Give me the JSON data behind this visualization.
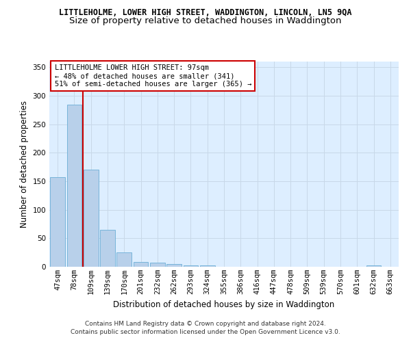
{
  "title": "LITTLEHOLME, LOWER HIGH STREET, WADDINGTON, LINCOLN, LN5 9QA",
  "subtitle": "Size of property relative to detached houses in Waddington",
  "xlabel": "Distribution of detached houses by size in Waddington",
  "ylabel": "Number of detached properties",
  "bar_color": "#b8d0ea",
  "bar_edge_color": "#6aaed6",
  "grid_color": "#c8d8e8",
  "background_color": "#ddeeff",
  "vline_color": "#cc0000",
  "categories": [
    "47sqm",
    "78sqm",
    "109sqm",
    "139sqm",
    "170sqm",
    "201sqm",
    "232sqm",
    "262sqm",
    "293sqm",
    "324sqm",
    "355sqm",
    "386sqm",
    "416sqm",
    "447sqm",
    "478sqm",
    "509sqm",
    "539sqm",
    "570sqm",
    "601sqm",
    "632sqm",
    "663sqm"
  ],
  "values": [
    157,
    285,
    170,
    65,
    25,
    9,
    7,
    5,
    3,
    3,
    0,
    0,
    0,
    0,
    0,
    0,
    0,
    0,
    0,
    3,
    0
  ],
  "ylim": [
    0,
    360
  ],
  "yticks": [
    0,
    50,
    100,
    150,
    200,
    250,
    300,
    350
  ],
  "annotation_line1": "LITTLEHOLME LOWER HIGH STREET: 97sqm",
  "annotation_line2": "← 48% of detached houses are smaller (341)",
  "annotation_line3": "51% of semi-detached houses are larger (365) →",
  "footer_line1": "Contains HM Land Registry data © Crown copyright and database right 2024.",
  "footer_line2": "Contains public sector information licensed under the Open Government Licence v3.0.",
  "title_fontsize": 8.5,
  "subtitle_fontsize": 9.5,
  "axis_label_fontsize": 8.5,
  "ylabel_fontsize": 8.5,
  "tick_fontsize": 7.5,
  "annotation_fontsize": 7.5,
  "footer_fontsize": 6.5
}
